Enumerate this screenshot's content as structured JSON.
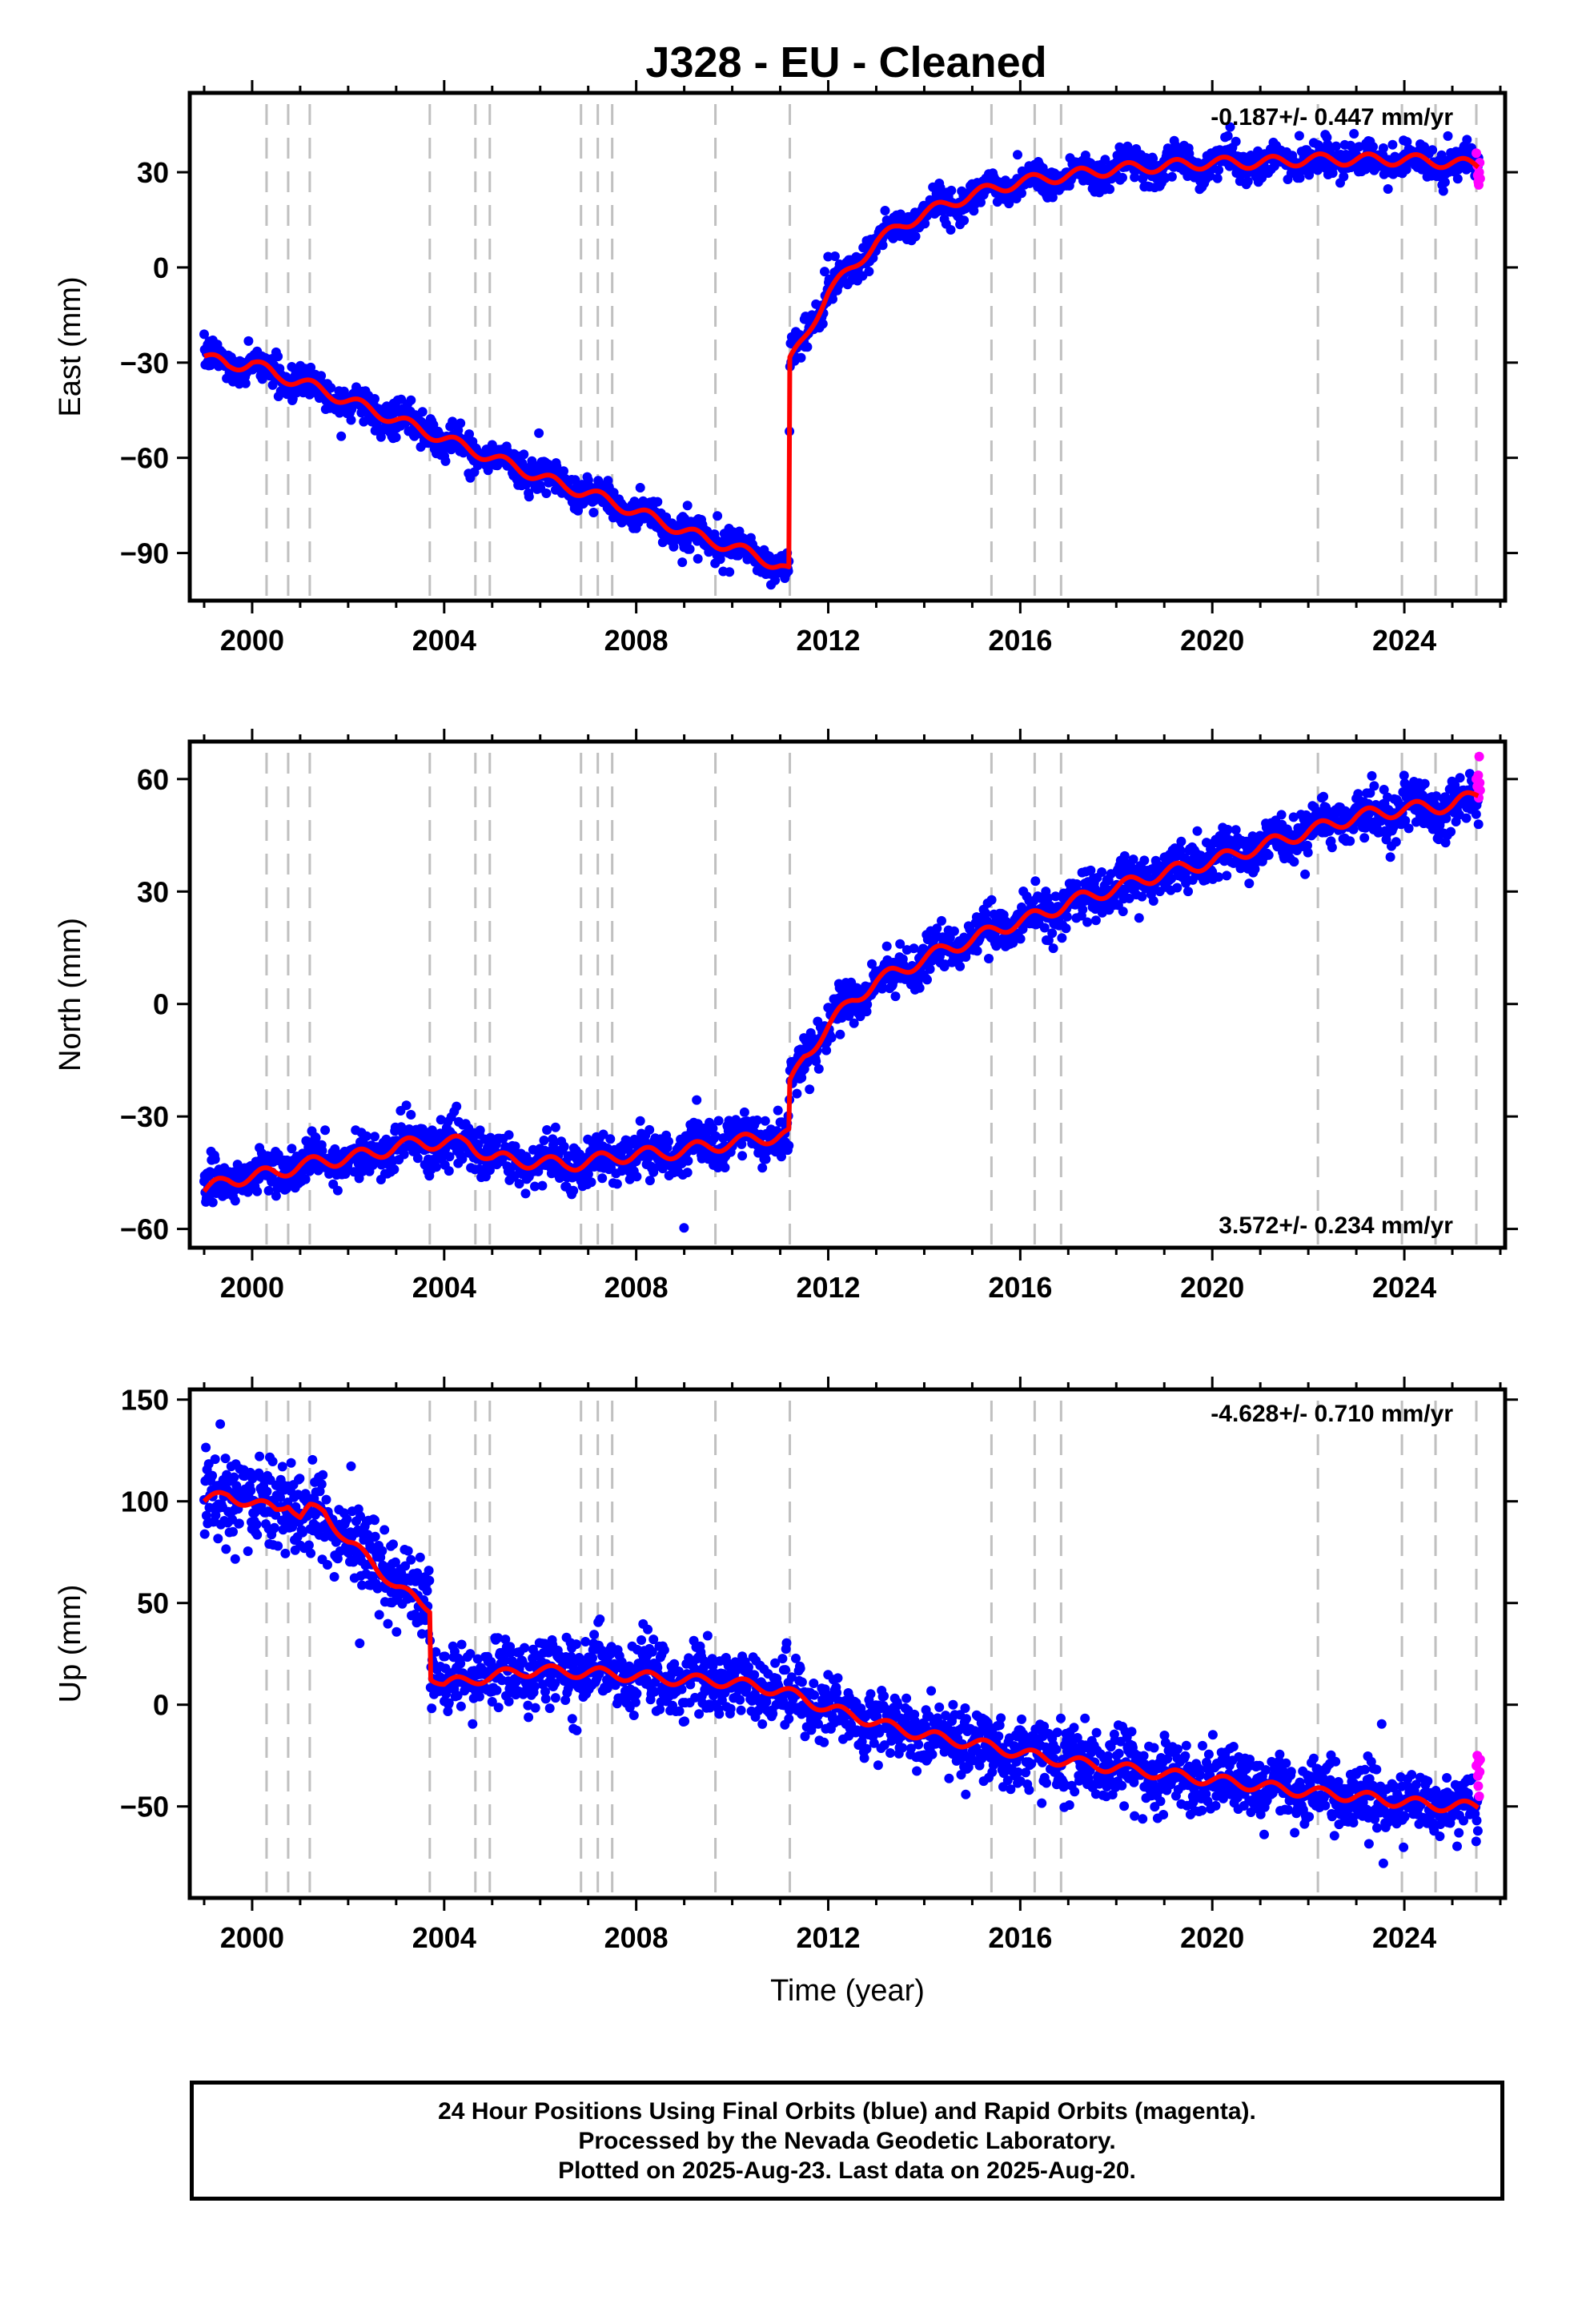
{
  "title": "J328  - EU - Cleaned",
  "footer": {
    "line1": "24 Hour Positions Using Final Orbits (blue) and Rapid Orbits (magenta).",
    "line2": "Processed by the Nevada Geodetic Laboratory.",
    "line3": "Plotted on 2025-Aug-23. Last data on 2025-Aug-20."
  },
  "colors": {
    "final_orbits": "#0000ff",
    "rapid_orbits": "#ff00ff",
    "trend_model": "#ff0000",
    "event_lines": "#c0c0c0"
  },
  "chart_data": [
    {
      "type": "scatter",
      "panel": "east",
      "xlabel": "",
      "ylabel": "East (mm)",
      "xlim": [
        1998.7,
        2026.1
      ],
      "ylim": [
        -105,
        55
      ],
      "x_ticks": [
        2000,
        2004,
        2008,
        2012,
        2016,
        2020,
        2024
      ],
      "y_ticks": [
        -90,
        -60,
        -30,
        0,
        30
      ],
      "y_tick_labels": [
        "−90",
        "−60",
        "−30",
        "0",
        "30"
      ],
      "annotation": "-0.187+/- 0.447 mm/yr",
      "annotation_position": "top-right",
      "event_lines": [
        2000.3,
        2000.75,
        2001.2,
        2003.7,
        2004.65,
        2004.95,
        2006.85,
        2007.2,
        2007.5,
        2009.65,
        2011.2,
        2015.4,
        2016.3,
        2016.85,
        2022.2,
        2023.95,
        2024.65,
        2025.5
      ],
      "trend_points": [
        [
          1999.0,
          -28
        ],
        [
          1999.5,
          -31
        ],
        [
          2000.0,
          -30
        ],
        [
          2000.5,
          -34
        ],
        [
          2001.0,
          -36
        ],
        [
          2001.5,
          -39
        ],
        [
          2002.0,
          -42
        ],
        [
          2002.5,
          -45
        ],
        [
          2003.0,
          -48
        ],
        [
          2003.5,
          -51
        ],
        [
          2004.0,
          -54
        ],
        [
          2004.5,
          -57
        ],
        [
          2005.0,
          -60
        ],
        [
          2005.5,
          -63
        ],
        [
          2006.0,
          -66
        ],
        [
          2006.5,
          -69
        ],
        [
          2007.0,
          -71
        ],
        [
          2007.5,
          -74
        ],
        [
          2008.0,
          -77
        ],
        [
          2008.5,
          -80
        ],
        [
          2009.0,
          -83
        ],
        [
          2009.5,
          -86
        ],
        [
          2010.0,
          -88
        ],
        [
          2010.5,
          -91
        ],
        [
          2011.0,
          -94
        ],
        [
          2011.18,
          -96
        ],
        [
          2011.2,
          -30
        ],
        [
          2011.5,
          -22
        ],
        [
          2012.0,
          -8
        ],
        [
          2012.5,
          0
        ],
        [
          2013.0,
          8
        ],
        [
          2013.5,
          13
        ],
        [
          2014.0,
          17
        ],
        [
          2014.5,
          20
        ],
        [
          2015.0,
          23
        ],
        [
          2015.5,
          25
        ],
        [
          2016.0,
          27
        ],
        [
          2016.5,
          28
        ],
        [
          2017.0,
          29
        ],
        [
          2018.0,
          31
        ],
        [
          2019.0,
          32
        ],
        [
          2020.0,
          33
        ],
        [
          2021.0,
          33
        ],
        [
          2022.0,
          34
        ],
        [
          2023.0,
          34
        ],
        [
          2024.0,
          34
        ],
        [
          2025.0,
          33
        ],
        [
          2025.55,
          32
        ]
      ],
      "seasonal_amplitude_mm": 2.0,
      "scatter_sigma_mm": 2.5,
      "rapid_points": [
        [
          2025.5,
          36
        ],
        [
          2025.52,
          32
        ],
        [
          2025.53,
          29
        ],
        [
          2025.54,
          27
        ],
        [
          2025.55,
          26
        ],
        [
          2025.56,
          30
        ],
        [
          2025.57,
          33
        ],
        [
          2025.58,
          28
        ]
      ]
    },
    {
      "type": "scatter",
      "panel": "north",
      "xlabel": "",
      "ylabel": "North (mm)",
      "xlim": [
        1998.7,
        2026.1
      ],
      "ylim": [
        -65,
        70
      ],
      "x_ticks": [
        2000,
        2004,
        2008,
        2012,
        2016,
        2020,
        2024
      ],
      "y_ticks": [
        -60,
        -30,
        0,
        30,
        60
      ],
      "y_tick_labels": [
        "−60",
        "−30",
        "0",
        "30",
        "60"
      ],
      "annotation": "3.572+/- 0.234 mm/yr",
      "annotation_position": "bottom-right",
      "event_lines": [
        2000.3,
        2000.75,
        2001.2,
        2003.7,
        2004.65,
        2004.95,
        2006.85,
        2007.2,
        2007.5,
        2009.65,
        2011.2,
        2015.4,
        2016.3,
        2016.85,
        2022.2,
        2023.95,
        2024.65,
        2025.5
      ],
      "trend_points": [
        [
          1999.0,
          -50
        ],
        [
          1999.5,
          -47
        ],
        [
          2000.0,
          -46
        ],
        [
          2000.5,
          -45
        ],
        [
          2001.0,
          -43
        ],
        [
          2001.5,
          -42
        ],
        [
          2002.0,
          -41
        ],
        [
          2002.5,
          -40
        ],
        [
          2003.0,
          -38
        ],
        [
          2003.5,
          -37
        ],
        [
          2004.0,
          -37
        ],
        [
          2004.5,
          -37
        ],
        [
          2005.0,
          -41
        ],
        [
          2005.5,
          -42
        ],
        [
          2006.0,
          -42
        ],
        [
          2006.5,
          -43
        ],
        [
          2007.0,
          -42
        ],
        [
          2007.5,
          -41
        ],
        [
          2008.0,
          -40
        ],
        [
          2008.5,
          -40
        ],
        [
          2009.0,
          -39
        ],
        [
          2009.5,
          -38
        ],
        [
          2010.0,
          -37
        ],
        [
          2010.5,
          -36
        ],
        [
          2011.0,
          -35
        ],
        [
          2011.18,
          -35
        ],
        [
          2011.2,
          -22
        ],
        [
          2011.5,
          -14
        ],
        [
          2012.0,
          -6
        ],
        [
          2012.5,
          1
        ],
        [
          2013.0,
          6
        ],
        [
          2013.5,
          9
        ],
        [
          2014.0,
          12
        ],
        [
          2014.5,
          15
        ],
        [
          2015.0,
          17
        ],
        [
          2015.5,
          20
        ],
        [
          2016.0,
          22
        ],
        [
          2016.5,
          24
        ],
        [
          2017.0,
          27
        ],
        [
          2018.0,
          31
        ],
        [
          2019.0,
          35
        ],
        [
          2020.0,
          38
        ],
        [
          2021.0,
          42
        ],
        [
          2022.0,
          46
        ],
        [
          2023.0,
          50
        ],
        [
          2024.0,
          52
        ],
        [
          2025.0,
          53
        ],
        [
          2025.55,
          56
        ]
      ],
      "seasonal_amplitude_mm": 2.0,
      "scatter_sigma_mm": 3.0,
      "rapid_points": [
        [
          2025.5,
          60
        ],
        [
          2025.52,
          58
        ],
        [
          2025.53,
          56
        ],
        [
          2025.54,
          61
        ],
        [
          2025.55,
          55
        ],
        [
          2025.56,
          66
        ],
        [
          2025.57,
          59
        ],
        [
          2025.58,
          57
        ]
      ]
    },
    {
      "type": "scatter",
      "panel": "up",
      "xlabel": "Time (year)",
      "ylabel": "Up (mm)",
      "xlim": [
        1998.7,
        2026.1
      ],
      "ylim": [
        -95,
        155
      ],
      "x_ticks": [
        2000,
        2004,
        2008,
        2012,
        2016,
        2020,
        2024
      ],
      "y_ticks": [
        -50,
        0,
        50,
        100,
        150
      ],
      "y_tick_labels": [
        "−50",
        "0",
        "50",
        "100",
        "150"
      ],
      "annotation": "-4.628+/- 0.710 mm/yr",
      "annotation_position": "top-right",
      "event_lines": [
        2000.3,
        2000.75,
        2001.2,
        2003.7,
        2004.65,
        2004.95,
        2006.85,
        2007.2,
        2007.5,
        2009.65,
        2011.2,
        2015.4,
        2016.3,
        2016.85,
        2022.2,
        2023.95,
        2024.65,
        2025.5
      ],
      "trend_points": [
        [
          1999.0,
          100
        ],
        [
          1999.5,
          103
        ],
        [
          2000.0,
          99
        ],
        [
          2000.5,
          96
        ],
        [
          2000.75,
          100
        ],
        [
          2001.0,
          92
        ],
        [
          2001.2,
          96
        ],
        [
          2001.5,
          95
        ],
        [
          2002.0,
          80
        ],
        [
          2002.5,
          70
        ],
        [
          2003.0,
          58
        ],
        [
          2003.5,
          50
        ],
        [
          2003.7,
          48
        ],
        [
          2003.72,
          15
        ],
        [
          2004.0,
          10
        ],
        [
          2004.5,
          12
        ],
        [
          2005.0,
          14
        ],
        [
          2005.5,
          16
        ],
        [
          2006.0,
          17
        ],
        [
          2006.5,
          16
        ],
        [
          2007.0,
          16
        ],
        [
          2007.5,
          15
        ],
        [
          2008.0,
          14
        ],
        [
          2008.5,
          13
        ],
        [
          2009.0,
          12
        ],
        [
          2009.5,
          12
        ],
        [
          2010.0,
          11
        ],
        [
          2010.5,
          9
        ],
        [
          2011.0,
          7
        ],
        [
          2011.5,
          3
        ],
        [
          2012.0,
          -2
        ],
        [
          2012.5,
          -5
        ],
        [
          2013.0,
          -9
        ],
        [
          2013.5,
          -12
        ],
        [
          2014.0,
          -15
        ],
        [
          2014.5,
          -17
        ],
        [
          2015.0,
          -19
        ],
        [
          2015.5,
          -21
        ],
        [
          2016.0,
          -24
        ],
        [
          2016.5,
          -26
        ],
        [
          2017.0,
          -28
        ],
        [
          2018.0,
          -31
        ],
        [
          2019.0,
          -34
        ],
        [
          2020.0,
          -37
        ],
        [
          2021.0,
          -40
        ],
        [
          2022.0,
          -43
        ],
        [
          2023.0,
          -45
        ],
        [
          2024.0,
          -48
        ],
        [
          2025.0,
          -50
        ],
        [
          2025.55,
          -50
        ]
      ],
      "seasonal_amplitude_mm": 3.0,
      "scatter_sigma_mm": 8.0,
      "rapid_points": [
        [
          2025.5,
          -30
        ],
        [
          2025.52,
          -25
        ],
        [
          2025.53,
          -35
        ],
        [
          2025.54,
          -40
        ],
        [
          2025.55,
          -28
        ],
        [
          2025.56,
          -45
        ],
        [
          2025.57,
          -33
        ],
        [
          2025.58,
          -27
        ]
      ]
    }
  ]
}
